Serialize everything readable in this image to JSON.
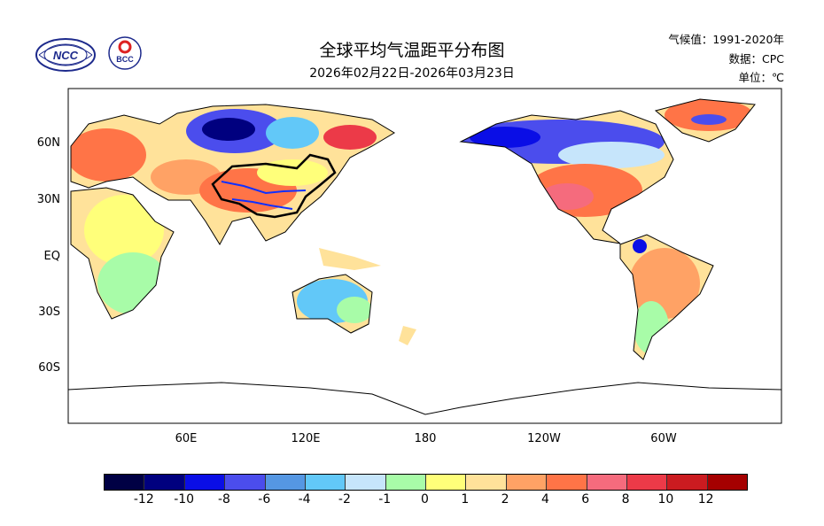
{
  "header": {
    "title": "全球平均气温距平分布图",
    "date_range": "2026年02月22日-2026年03月23日",
    "climatology": "气候值：1991-2020年",
    "source": "数据：CPC",
    "unit": "单位：℃"
  },
  "logos": {
    "left": "NCC",
    "right": "BCC"
  },
  "map": {
    "lat_labels": [
      "60N",
      "30N",
      "EQ",
      "30S",
      "60S"
    ],
    "lon_labels": [
      "60E",
      "120E",
      "180",
      "120W",
      "60W"
    ]
  },
  "colorbar": {
    "colors": [
      "#000044",
      "#00007f",
      "#0a0ee6",
      "#4b4ded",
      "#5597e3",
      "#62c8f8",
      "#c6e5fb",
      "#a8fca8",
      "#ffff7a",
      "#ffe29a",
      "#ffa265",
      "#ff7447",
      "#f56b7d",
      "#ec3a48",
      "#cb1b20",
      "#a50000"
    ],
    "labels": [
      "-12",
      "-10",
      "-8",
      "-6",
      "-4",
      "-2",
      "-1",
      "0",
      "1",
      "2",
      "4",
      "6",
      "8",
      "10",
      "12"
    ]
  }
}
